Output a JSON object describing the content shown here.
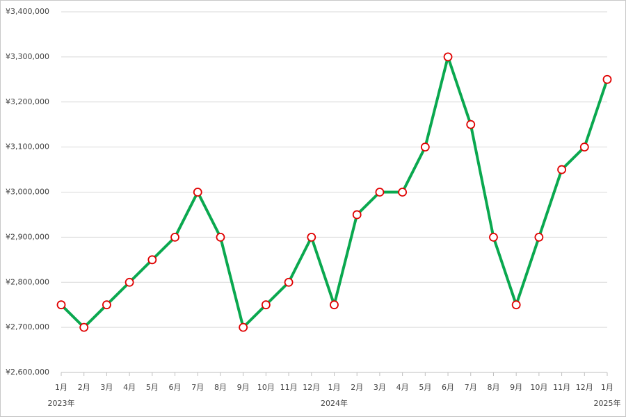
{
  "chart_data": {
    "type": "line",
    "categories": [
      "1月",
      "2月",
      "3月",
      "4月",
      "5月",
      "6月",
      "7月",
      "8月",
      "9月",
      "10月",
      "11月",
      "12月",
      "1月",
      "2月",
      "3月",
      "4月",
      "5月",
      "6月",
      "7月",
      "8月",
      "9月",
      "10月",
      "11月",
      "12月",
      "1月"
    ],
    "years": [
      "2023年",
      null,
      null,
      null,
      null,
      null,
      null,
      null,
      null,
      null,
      null,
      null,
      "2024年",
      null,
      null,
      null,
      null,
      null,
      null,
      null,
      null,
      null,
      null,
      null,
      "2025年"
    ],
    "series": [
      {
        "color": "#0aa84f",
        "marker_stroke": "#e00000",
        "marker_fill": "#ffffff",
        "values": [
          2750000,
          2700000,
          2750000,
          2800000,
          2850000,
          2900000,
          3000000,
          2900000,
          2700000,
          2750000,
          2800000,
          2900000,
          2750000,
          2950000,
          3000000,
          3000000,
          3100000,
          3300000,
          3150000,
          2900000,
          2750000,
          2900000,
          3050000,
          3100000,
          3250000
        ]
      }
    ],
    "ylim": [
      2600000,
      3400000
    ],
    "yticks": [
      {
        "value": 2600000,
        "label": "¥2,600,000"
      },
      {
        "value": 2700000,
        "label": "¥2,700,000"
      },
      {
        "value": 2800000,
        "label": "¥2,800,000"
      },
      {
        "value": 2900000,
        "label": "¥2,900,000"
      },
      {
        "value": 3000000,
        "label": "¥3,000,000"
      },
      {
        "value": 3100000,
        "label": "¥3,100,000"
      },
      {
        "value": 3200000,
        "label": "¥3,200,000"
      },
      {
        "value": 3300000,
        "label": "¥3,300,000"
      },
      {
        "value": 3400000,
        "label": "¥3,400,000"
      }
    ],
    "grid": true
  }
}
